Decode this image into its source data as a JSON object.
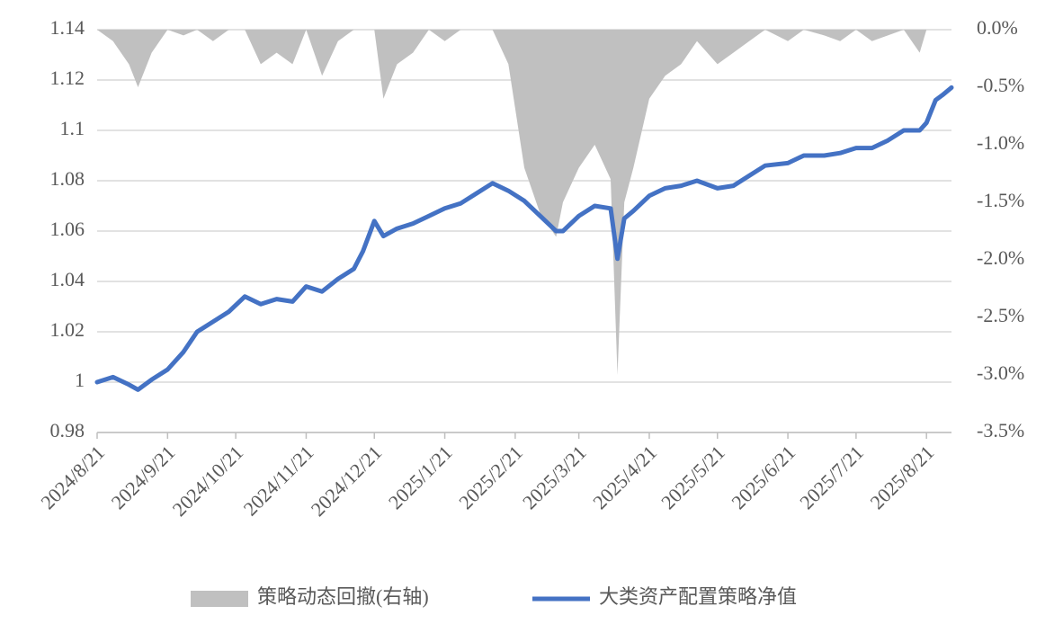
{
  "chart_data": {
    "type": "combo",
    "x": [
      "2024/8/21",
      "2024/8/28",
      "2024/9/4",
      "2024/9/8",
      "2024/9/14",
      "2024/9/21",
      "2024/9/28",
      "2024/10/4",
      "2024/10/11",
      "2024/10/18",
      "2024/10/25",
      "2024/11/1",
      "2024/11/8",
      "2024/11/15",
      "2024/11/21",
      "2024/11/28",
      "2024/12/5",
      "2024/12/12",
      "2024/12/16",
      "2024/12/21",
      "2024/12/25",
      "2024/12/31",
      "2025/1/7",
      "2025/1/14",
      "2025/1/21",
      "2025/1/28",
      "2025/2/4",
      "2025/2/11",
      "2025/2/18",
      "2025/2/25",
      "2025/3/4",
      "2025/3/11",
      "2025/3/14",
      "2025/3/21",
      "2025/3/28",
      "2025/4/4",
      "2025/4/7",
      "2025/4/10",
      "2025/4/14",
      "2025/4/21",
      "2025/4/28",
      "2025/5/5",
      "2025/5/12",
      "2025/5/21",
      "2025/5/28",
      "2025/6/4",
      "2025/6/11",
      "2025/6/21",
      "2025/6/28",
      "2025/7/7",
      "2025/7/14",
      "2025/7/21",
      "2025/7/28",
      "2025/8/4",
      "2025/8/11",
      "2025/8/18",
      "2025/8/21",
      "2025/8/25",
      "2025/8/28",
      "2025/9/1"
    ],
    "xlim": [
      "2024/8/21",
      "2025/9/1"
    ],
    "xticks": [
      "2024/8/21",
      "2024/9/21",
      "2024/10/21",
      "2024/11/21",
      "2024/12/21",
      "2025/1/21",
      "2025/2/21",
      "2025/3/21",
      "2025/4/21",
      "2025/5/21",
      "2025/6/21",
      "2025/7/21",
      "2025/8/21"
    ],
    "series": [
      {
        "name": "策略动态回撤(右轴)",
        "type": "area",
        "axis": "y2",
        "color": "#c0c0c0",
        "values": [
          0,
          -0.1,
          -0.3,
          -0.5,
          -0.2,
          0,
          -0.05,
          0,
          -0.1,
          0,
          0,
          -0.3,
          -0.2,
          -0.3,
          0,
          -0.4,
          -0.1,
          0,
          0,
          0,
          -0.6,
          -0.3,
          -0.2,
          0,
          -0.1,
          0,
          0,
          0,
          -0.3,
          -1.2,
          -1.6,
          -1.8,
          -1.5,
          -1.2,
          -1.0,
          -1.3,
          -3.0,
          -1.5,
          -1.2,
          -0.6,
          -0.4,
          -0.3,
          -0.1,
          -0.3,
          -0.2,
          -0.1,
          0,
          -0.1,
          0,
          -0.05,
          -0.1,
          0,
          -0.1,
          -0.05,
          0,
          -0.2,
          0,
          0,
          0,
          0
        ]
      },
      {
        "name": "大类资产配置策略净值",
        "type": "line",
        "color": "#4472c4",
        "values": [
          1.0,
          1.002,
          0.999,
          0.997,
          1.001,
          1.005,
          1.012,
          1.02,
          1.024,
          1.028,
          1.034,
          1.031,
          1.033,
          1.032,
          1.038,
          1.036,
          1.041,
          1.045,
          1.052,
          1.064,
          1.058,
          1.061,
          1.063,
          1.066,
          1.069,
          1.071,
          1.075,
          1.079,
          1.076,
          1.072,
          1.066,
          1.06,
          1.06,
          1.066,
          1.07,
          1.069,
          1.049,
          1.065,
          1.068,
          1.074,
          1.077,
          1.078,
          1.08,
          1.077,
          1.078,
          1.082,
          1.086,
          1.087,
          1.09,
          1.09,
          1.091,
          1.093,
          1.093,
          1.096,
          1.1,
          1.1,
          1.103,
          1.112,
          1.114,
          1.117
        ]
      }
    ],
    "ylim": [
      0.98,
      1.14
    ],
    "yticks": [
      0.98,
      1,
      1.02,
      1.04,
      1.06,
      1.08,
      1.1,
      1.12,
      1.14
    ],
    "y2lim": [
      -3.5,
      0
    ],
    "y2ticks": [
      {
        "value": -3.5,
        "label": "-3.5%"
      },
      {
        "value": -3,
        "label": "-3.0%"
      },
      {
        "value": -2.5,
        "label": "-2.5%"
      },
      {
        "value": -2,
        "label": "-2.0%"
      },
      {
        "value": -1.5,
        "label": "-1.5%"
      },
      {
        "value": -1,
        "label": "-1.0%"
      },
      {
        "value": -0.5,
        "label": "-0.5%"
      },
      {
        "value": 0,
        "label": "0.0%"
      }
    ],
    "grid": true
  }
}
